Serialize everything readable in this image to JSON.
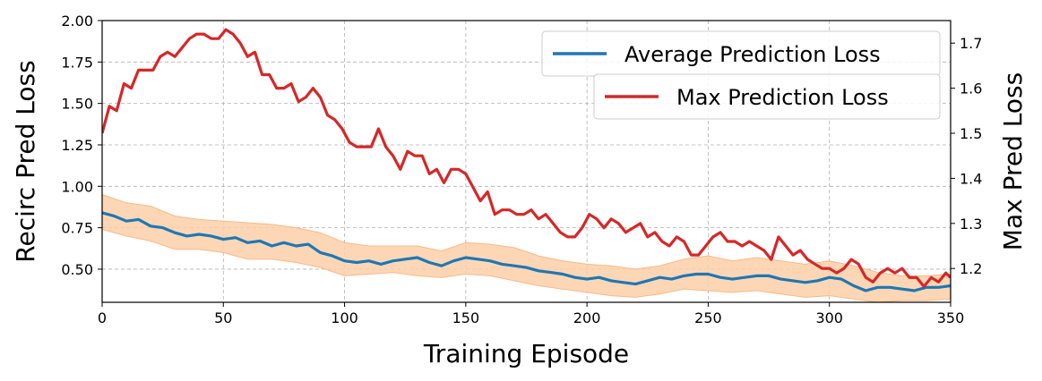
{
  "chart_data": {
    "type": "line",
    "xlabel": "Training Episode",
    "ylabel_left": "Recirc Pred Loss",
    "ylabel_right": "Max Pred Loss",
    "xlim": [
      0,
      350
    ],
    "ylim_left": [
      0.3,
      2.0
    ],
    "ylim_right": [
      1.125,
      1.75
    ],
    "xticks": [
      "0",
      "50",
      "100",
      "150",
      "200",
      "250",
      "300",
      "350"
    ],
    "yticks_left": [
      "0.50",
      "0.75",
      "1.00",
      "1.25",
      "1.50",
      "1.75",
      "2.00"
    ],
    "yticks_right": [
      "1.2",
      "1.3",
      "1.4",
      "1.5",
      "1.6",
      "1.7"
    ],
    "grid": true,
    "legend_placement": "top-right",
    "colors": {
      "avg": "#1f77b4",
      "max": "#d62728",
      "band": "#fdd0a8",
      "band_edge": "#fbb887"
    },
    "series": [
      {
        "name": "Average Prediction Loss",
        "axis": "left",
        "x": [
          0,
          5,
          10,
          15,
          20,
          25,
          30,
          35,
          40,
          45,
          50,
          55,
          60,
          65,
          70,
          75,
          80,
          85,
          90,
          95,
          100,
          105,
          110,
          115,
          120,
          125,
          130,
          135,
          140,
          145,
          150,
          155,
          160,
          165,
          170,
          175,
          180,
          185,
          190,
          195,
          200,
          205,
          210,
          215,
          220,
          225,
          230,
          235,
          240,
          245,
          250,
          255,
          260,
          265,
          270,
          275,
          280,
          285,
          290,
          295,
          300,
          305,
          310,
          315,
          320,
          325,
          330,
          335,
          340,
          345,
          350
        ],
        "y": [
          0.84,
          0.82,
          0.79,
          0.8,
          0.76,
          0.75,
          0.72,
          0.7,
          0.71,
          0.7,
          0.68,
          0.69,
          0.66,
          0.67,
          0.64,
          0.66,
          0.64,
          0.65,
          0.6,
          0.58,
          0.55,
          0.54,
          0.55,
          0.53,
          0.55,
          0.56,
          0.57,
          0.54,
          0.52,
          0.55,
          0.57,
          0.56,
          0.55,
          0.53,
          0.52,
          0.51,
          0.49,
          0.48,
          0.47,
          0.45,
          0.44,
          0.45,
          0.43,
          0.42,
          0.41,
          0.43,
          0.45,
          0.44,
          0.46,
          0.47,
          0.47,
          0.45,
          0.44,
          0.45,
          0.46,
          0.46,
          0.44,
          0.43,
          0.42,
          0.43,
          0.45,
          0.44,
          0.4,
          0.37,
          0.39,
          0.39,
          0.38,
          0.37,
          0.39,
          0.39,
          0.4
        ]
      },
      {
        "name": "Max Prediction Loss",
        "axis": "right",
        "x": [
          0,
          3,
          6,
          9,
          12,
          15,
          18,
          21,
          24,
          27,
          30,
          33,
          36,
          39,
          42,
          45,
          48,
          51,
          54,
          57,
          60,
          63,
          66,
          69,
          72,
          75,
          78,
          81,
          84,
          87,
          90,
          93,
          96,
          99,
          102,
          105,
          108,
          111,
          114,
          117,
          120,
          123,
          126,
          129,
          132,
          135,
          138,
          141,
          144,
          147,
          150,
          153,
          156,
          159,
          162,
          165,
          168,
          171,
          174,
          177,
          180,
          183,
          186,
          189,
          192,
          195,
          198,
          201,
          204,
          207,
          210,
          213,
          216,
          219,
          222,
          225,
          228,
          231,
          234,
          237,
          240,
          243,
          246,
          249,
          252,
          255,
          258,
          261,
          264,
          267,
          270,
          273,
          276,
          279,
          282,
          285,
          288,
          291,
          294,
          297,
          300,
          303,
          306,
          309,
          312,
          315,
          318,
          321,
          324,
          327,
          330,
          333,
          336,
          339,
          342,
          345,
          348,
          350
        ],
        "y": [
          1.5,
          1.56,
          1.55,
          1.61,
          1.6,
          1.64,
          1.64,
          1.64,
          1.67,
          1.68,
          1.67,
          1.69,
          1.71,
          1.72,
          1.72,
          1.71,
          1.71,
          1.73,
          1.72,
          1.7,
          1.67,
          1.68,
          1.63,
          1.63,
          1.6,
          1.6,
          1.61,
          1.57,
          1.58,
          1.6,
          1.58,
          1.54,
          1.53,
          1.51,
          1.48,
          1.47,
          1.47,
          1.47,
          1.51,
          1.47,
          1.45,
          1.42,
          1.46,
          1.45,
          1.45,
          1.41,
          1.42,
          1.39,
          1.42,
          1.42,
          1.41,
          1.38,
          1.35,
          1.37,
          1.32,
          1.33,
          1.33,
          1.32,
          1.32,
          1.33,
          1.31,
          1.32,
          1.3,
          1.28,
          1.27,
          1.27,
          1.29,
          1.32,
          1.31,
          1.29,
          1.31,
          1.3,
          1.28,
          1.29,
          1.3,
          1.27,
          1.28,
          1.26,
          1.25,
          1.27,
          1.26,
          1.23,
          1.23,
          1.25,
          1.27,
          1.28,
          1.26,
          1.26,
          1.25,
          1.26,
          1.25,
          1.24,
          1.22,
          1.27,
          1.25,
          1.23,
          1.24,
          1.22,
          1.21,
          1.2,
          1.2,
          1.19,
          1.2,
          1.22,
          1.21,
          1.18,
          1.17,
          1.19,
          1.2,
          1.19,
          1.2,
          1.18,
          1.18,
          1.16,
          1.18,
          1.17,
          1.19,
          1.18
        ]
      }
    ],
    "band": {
      "axis": "left",
      "x": [
        0,
        10,
        20,
        30,
        40,
        50,
        60,
        70,
        80,
        90,
        100,
        110,
        120,
        130,
        140,
        150,
        160,
        170,
        180,
        190,
        200,
        210,
        220,
        230,
        240,
        250,
        260,
        270,
        280,
        290,
        300,
        310,
        320,
        330,
        340,
        350
      ],
      "lower": [
        0.74,
        0.7,
        0.67,
        0.62,
        0.62,
        0.6,
        0.56,
        0.56,
        0.54,
        0.51,
        0.46,
        0.47,
        0.48,
        0.46,
        0.45,
        0.47,
        0.46,
        0.43,
        0.4,
        0.38,
        0.36,
        0.34,
        0.33,
        0.35,
        0.38,
        0.37,
        0.36,
        0.37,
        0.35,
        0.33,
        0.34,
        0.32,
        0.3,
        0.31,
        0.31,
        0.32
      ],
      "upper": [
        0.95,
        0.9,
        0.88,
        0.82,
        0.8,
        0.79,
        0.78,
        0.77,
        0.75,
        0.72,
        0.66,
        0.64,
        0.64,
        0.64,
        0.61,
        0.66,
        0.65,
        0.63,
        0.58,
        0.55,
        0.53,
        0.52,
        0.5,
        0.52,
        0.56,
        0.58,
        0.55,
        0.57,
        0.55,
        0.53,
        0.55,
        0.52,
        0.48,
        0.46,
        0.46,
        0.47
      ]
    }
  }
}
